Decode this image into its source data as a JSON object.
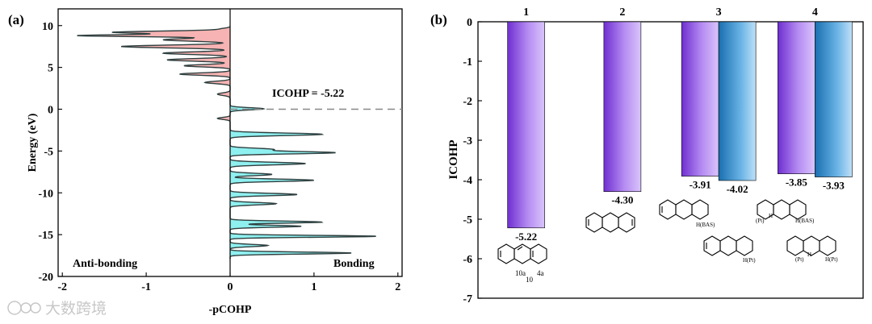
{
  "panel_a_label": "(a)",
  "panel_b_label": "(b)",
  "watermark": "大数跨境",
  "chart_data": [
    {
      "type": "area",
      "title": "",
      "xlabel": "-pCOHP",
      "ylabel": "Energy (eV)",
      "xlim": [
        -2.05,
        2.05
      ],
      "ylim": [
        -20,
        12
      ],
      "xticks": [
        -2,
        -1,
        0,
        1,
        2
      ],
      "xtick_labels": [
        "-2",
        "-1",
        "0",
        "1",
        "2"
      ],
      "yticks": [
        10,
        5,
        0,
        -5,
        -10,
        -15,
        -20
      ],
      "ytick_labels": [
        "10",
        "5",
        "0",
        "-5",
        "-10",
        "-15",
        "-20"
      ],
      "annotation": "ICOHP = -5.22",
      "fermi_level": 0,
      "left_label": "Anti-bonding",
      "right_label": "Bonding",
      "peaks": [
        {
          "E": 9.6,
          "v": -0.1,
          "w": 0.15
        },
        {
          "E": 9.2,
          "v": -1.4,
          "w": 0.14
        },
        {
          "E": 8.8,
          "v": -1.8,
          "w": 0.12
        },
        {
          "E": 8.3,
          "v": -0.8,
          "w": 0.16
        },
        {
          "E": 7.5,
          "v": -1.3,
          "w": 0.16
        },
        {
          "E": 6.7,
          "v": -0.8,
          "w": 0.15
        },
        {
          "E": 5.9,
          "v": -0.75,
          "w": 0.15
        },
        {
          "E": 5.2,
          "v": -0.55,
          "w": 0.14
        },
        {
          "E": 4.2,
          "v": -0.6,
          "w": 0.14
        },
        {
          "E": 3.2,
          "v": -0.3,
          "w": 0.14
        },
        {
          "E": 1.8,
          "v": -0.15,
          "w": 0.15
        },
        {
          "E": 0.05,
          "v": 0.4,
          "w": 0.13
        },
        {
          "E": -1.1,
          "v": -0.15,
          "w": 0.12
        },
        {
          "E": -3.0,
          "v": 1.1,
          "w": 0.15
        },
        {
          "E": -4.8,
          "v": 0.5,
          "w": 0.14
        },
        {
          "E": -5.2,
          "v": 1.25,
          "w": 0.14
        },
        {
          "E": -6.5,
          "v": 0.9,
          "w": 0.15
        },
        {
          "E": -7.8,
          "v": 0.5,
          "w": 0.14
        },
        {
          "E": -8.5,
          "v": 1.0,
          "w": 0.14
        },
        {
          "E": -10.2,
          "v": 0.8,
          "w": 0.14
        },
        {
          "E": -11.3,
          "v": 0.55,
          "w": 0.14
        },
        {
          "E": -13.5,
          "v": 1.1,
          "w": 0.12
        },
        {
          "E": -14.0,
          "v": 0.85,
          "w": 0.12
        },
        {
          "E": -15.2,
          "v": 1.75,
          "w": 0.11
        },
        {
          "E": -16.3,
          "v": 0.45,
          "w": 0.13
        },
        {
          "E": -17.2,
          "v": 1.45,
          "w": 0.12
        }
      ]
    },
    {
      "type": "bar",
      "title": "",
      "xlabel": "",
      "ylabel": "ICOHP",
      "ylim": [
        -7,
        0
      ],
      "yticks": [
        0,
        -1,
        -2,
        -3,
        -4,
        -5,
        -6,
        -7
      ],
      "ytick_labels": [
        "0",
        "-1",
        "-2",
        "-3",
        "-4",
        "-5",
        "-6",
        "-7"
      ],
      "categories": [
        "1",
        "2",
        "3",
        "4"
      ],
      "series": [
        {
          "name": "purple",
          "color": "#a06ee8",
          "values": [
            -5.22,
            -4.3,
            -3.91,
            -3.85
          ],
          "labels": [
            "-5.22",
            "-4.30",
            "-3.91",
            "-3.85"
          ]
        },
        {
          "name": "blue",
          "color": "#2a7fbf",
          "values": [
            null,
            null,
            -4.02,
            -3.93
          ],
          "labels": [
            "",
            "",
            "-4.02",
            "-3.93"
          ]
        }
      ],
      "structure_labels": {
        "mol1": [
          "10a",
          "10",
          "4a"
        ],
        "mol3a": "H(BAS)",
        "mol3b": "H(Pt)",
        "mol4a": [
          "(Pt)",
          "H",
          "H(BAS)"
        ],
        "mol4b": [
          "(Pt)",
          "H",
          "H(Pt)"
        ]
      }
    }
  ]
}
